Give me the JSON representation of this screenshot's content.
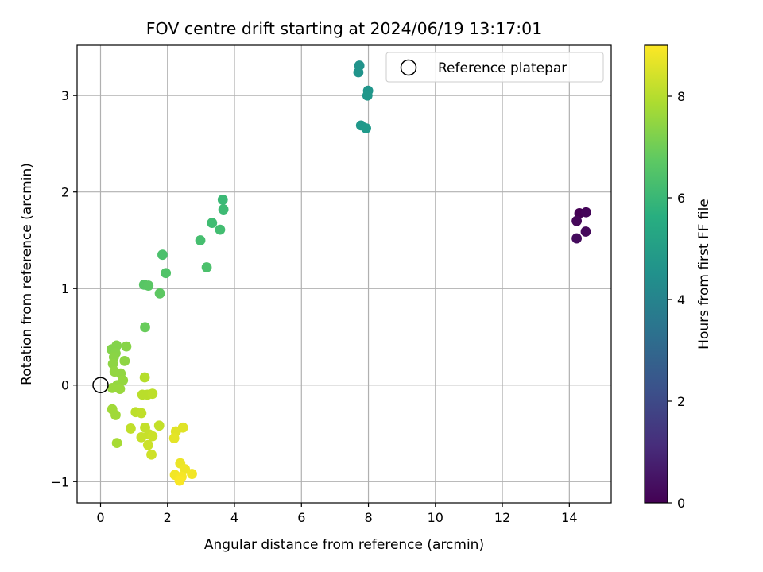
{
  "chart_data": {
    "type": "scatter",
    "title": "FOV centre drift starting at 2024/06/19 13:17:01",
    "xlabel": "Angular distance from reference (arcmin)",
    "ylabel": "Rotation from reference (arcmin)",
    "xlim": [
      -0.7,
      15.25
    ],
    "ylim": [
      -1.22,
      3.52
    ],
    "xticks": [
      0,
      2,
      4,
      6,
      8,
      10,
      12,
      14
    ],
    "yticks": [
      -1,
      0,
      1,
      2,
      3
    ],
    "xtick_labels": [
      "0",
      "2",
      "4",
      "6",
      "8",
      "10",
      "12",
      "14"
    ],
    "ytick_labels": [
      "−1",
      "0",
      "1",
      "2",
      "3"
    ],
    "grid": true,
    "colormap": "viridis",
    "colorbar": {
      "label": "Hours from first FF file",
      "range": [
        0,
        9
      ],
      "ticks": [
        0,
        2,
        4,
        6,
        8
      ],
      "tick_labels": [
        "0",
        "2",
        "4",
        "6",
        "8"
      ]
    },
    "legend": {
      "placement": "top-right",
      "entries": [
        "Reference platepar"
      ]
    },
    "reference_point": {
      "x": 0,
      "y": 0,
      "label": "Reference platepar"
    },
    "points": [
      {
        "x": 14.3,
        "y": 1.78,
        "c": 0.0
      },
      {
        "x": 14.5,
        "y": 1.79,
        "c": 0.1
      },
      {
        "x": 14.22,
        "y": 1.7,
        "c": 0.15
      },
      {
        "x": 14.49,
        "y": 1.59,
        "c": 0.2
      },
      {
        "x": 14.22,
        "y": 1.52,
        "c": 0.25
      },
      {
        "x": 7.73,
        "y": 3.31,
        "c": 4.6
      },
      {
        "x": 7.7,
        "y": 3.24,
        "c": 4.65
      },
      {
        "x": 7.99,
        "y": 3.05,
        "c": 4.7
      },
      {
        "x": 7.97,
        "y": 3.0,
        "c": 4.75
      },
      {
        "x": 7.78,
        "y": 2.69,
        "c": 4.8
      },
      {
        "x": 7.93,
        "y": 2.66,
        "c": 4.85
      },
      {
        "x": 3.65,
        "y": 1.92,
        "c": 6.1
      },
      {
        "x": 3.67,
        "y": 1.82,
        "c": 6.15
      },
      {
        "x": 3.33,
        "y": 1.68,
        "c": 6.2
      },
      {
        "x": 3.57,
        "y": 1.61,
        "c": 6.25
      },
      {
        "x": 2.98,
        "y": 1.5,
        "c": 6.3
      },
      {
        "x": 1.85,
        "y": 1.35,
        "c": 6.4
      },
      {
        "x": 3.17,
        "y": 1.22,
        "c": 6.4
      },
      {
        "x": 1.95,
        "y": 1.16,
        "c": 6.5
      },
      {
        "x": 1.3,
        "y": 1.04,
        "c": 6.6
      },
      {
        "x": 1.43,
        "y": 1.03,
        "c": 6.65
      },
      {
        "x": 1.77,
        "y": 0.95,
        "c": 6.7
      },
      {
        "x": 1.33,
        "y": 0.6,
        "c": 6.9
      },
      {
        "x": 0.33,
        "y": 0.37,
        "c": 7.3
      },
      {
        "x": 0.48,
        "y": 0.41,
        "c": 7.3
      },
      {
        "x": 0.77,
        "y": 0.4,
        "c": 7.35
      },
      {
        "x": 0.45,
        "y": 0.33,
        "c": 7.35
      },
      {
        "x": 0.4,
        "y": 0.29,
        "c": 7.4
      },
      {
        "x": 0.72,
        "y": 0.25,
        "c": 7.45
      },
      {
        "x": 0.37,
        "y": 0.22,
        "c": 7.45
      },
      {
        "x": 0.6,
        "y": 0.12,
        "c": 7.5
      },
      {
        "x": 0.42,
        "y": 0.14,
        "c": 7.5
      },
      {
        "x": 0.67,
        "y": 0.05,
        "c": 7.55
      },
      {
        "x": 0.5,
        "y": 0.0,
        "c": 7.55
      },
      {
        "x": 0.35,
        "y": -0.03,
        "c": 7.6
      },
      {
        "x": 0.58,
        "y": -0.04,
        "c": 7.6
      },
      {
        "x": 0.35,
        "y": -0.25,
        "c": 7.7
      },
      {
        "x": 0.45,
        "y": -0.31,
        "c": 7.7
      },
      {
        "x": 0.49,
        "y": -0.6,
        "c": 7.8
      },
      {
        "x": 1.32,
        "y": 0.08,
        "c": 8.0
      },
      {
        "x": 1.25,
        "y": -0.1,
        "c": 8.05
      },
      {
        "x": 1.4,
        "y": -0.1,
        "c": 8.05
      },
      {
        "x": 1.55,
        "y": -0.09,
        "c": 8.1
      },
      {
        "x": 1.05,
        "y": -0.28,
        "c": 8.1
      },
      {
        "x": 1.22,
        "y": -0.29,
        "c": 8.15
      },
      {
        "x": 0.9,
        "y": -0.45,
        "c": 8.15
      },
      {
        "x": 1.75,
        "y": -0.42,
        "c": 8.2
      },
      {
        "x": 1.33,
        "y": -0.44,
        "c": 8.2
      },
      {
        "x": 1.45,
        "y": -0.51,
        "c": 8.25
      },
      {
        "x": 1.22,
        "y": -0.54,
        "c": 8.25
      },
      {
        "x": 1.55,
        "y": -0.53,
        "c": 8.3
      },
      {
        "x": 1.42,
        "y": -0.62,
        "c": 8.3
      },
      {
        "x": 1.52,
        "y": -0.72,
        "c": 8.35
      },
      {
        "x": 2.46,
        "y": -0.44,
        "c": 8.6
      },
      {
        "x": 2.25,
        "y": -0.48,
        "c": 8.6
      },
      {
        "x": 2.2,
        "y": -0.55,
        "c": 8.65
      },
      {
        "x": 2.38,
        "y": -0.81,
        "c": 8.75
      },
      {
        "x": 2.52,
        "y": -0.87,
        "c": 8.8
      },
      {
        "x": 2.22,
        "y": -0.93,
        "c": 8.85
      },
      {
        "x": 2.73,
        "y": -0.92,
        "c": 8.85
      },
      {
        "x": 2.42,
        "y": -0.95,
        "c": 8.9
      },
      {
        "x": 2.36,
        "y": -0.99,
        "c": 8.95
      }
    ]
  }
}
